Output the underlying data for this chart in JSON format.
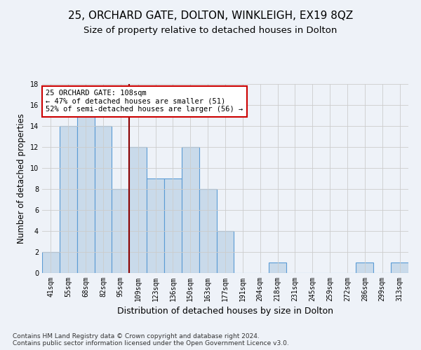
{
  "title1": "25, ORCHARD GATE, DOLTON, WINKLEIGH, EX19 8QZ",
  "title2": "Size of property relative to detached houses in Dolton",
  "xlabel": "Distribution of detached houses by size in Dolton",
  "ylabel": "Number of detached properties",
  "footnote": "Contains HM Land Registry data © Crown copyright and database right 2024.\nContains public sector information licensed under the Open Government Licence v3.0.",
  "bar_labels": [
    "41sqm",
    "55sqm",
    "68sqm",
    "82sqm",
    "95sqm",
    "109sqm",
    "123sqm",
    "136sqm",
    "150sqm",
    "163sqm",
    "177sqm",
    "191sqm",
    "204sqm",
    "218sqm",
    "231sqm",
    "245sqm",
    "259sqm",
    "272sqm",
    "286sqm",
    "299sqm",
    "313sqm"
  ],
  "bar_values": [
    2,
    14,
    15,
    14,
    8,
    12,
    9,
    9,
    12,
    8,
    4,
    0,
    0,
    1,
    0,
    0,
    0,
    0,
    1,
    0,
    1
  ],
  "bar_color": "#c9daea",
  "bar_edge_color": "#5b9bd5",
  "highlight_index": 5,
  "highlight_line_color": "#8b0000",
  "annotation_text": "25 ORCHARD GATE: 108sqm\n← 47% of detached houses are smaller (51)\n52% of semi-detached houses are larger (56) →",
  "annotation_box_color": "#ffffff",
  "annotation_box_edge_color": "#cc0000",
  "ylim": [
    0,
    18
  ],
  "yticks": [
    0,
    2,
    4,
    6,
    8,
    10,
    12,
    14,
    16,
    18
  ],
  "background_color": "#eef2f8",
  "plot_background_color": "#eef2f8",
  "grid_color": "#cccccc",
  "title1_fontsize": 11,
  "title2_fontsize": 9.5,
  "xlabel_fontsize": 9,
  "ylabel_fontsize": 8.5,
  "tick_fontsize": 7,
  "annotation_fontsize": 7.5,
  "footnote_fontsize": 6.5
}
